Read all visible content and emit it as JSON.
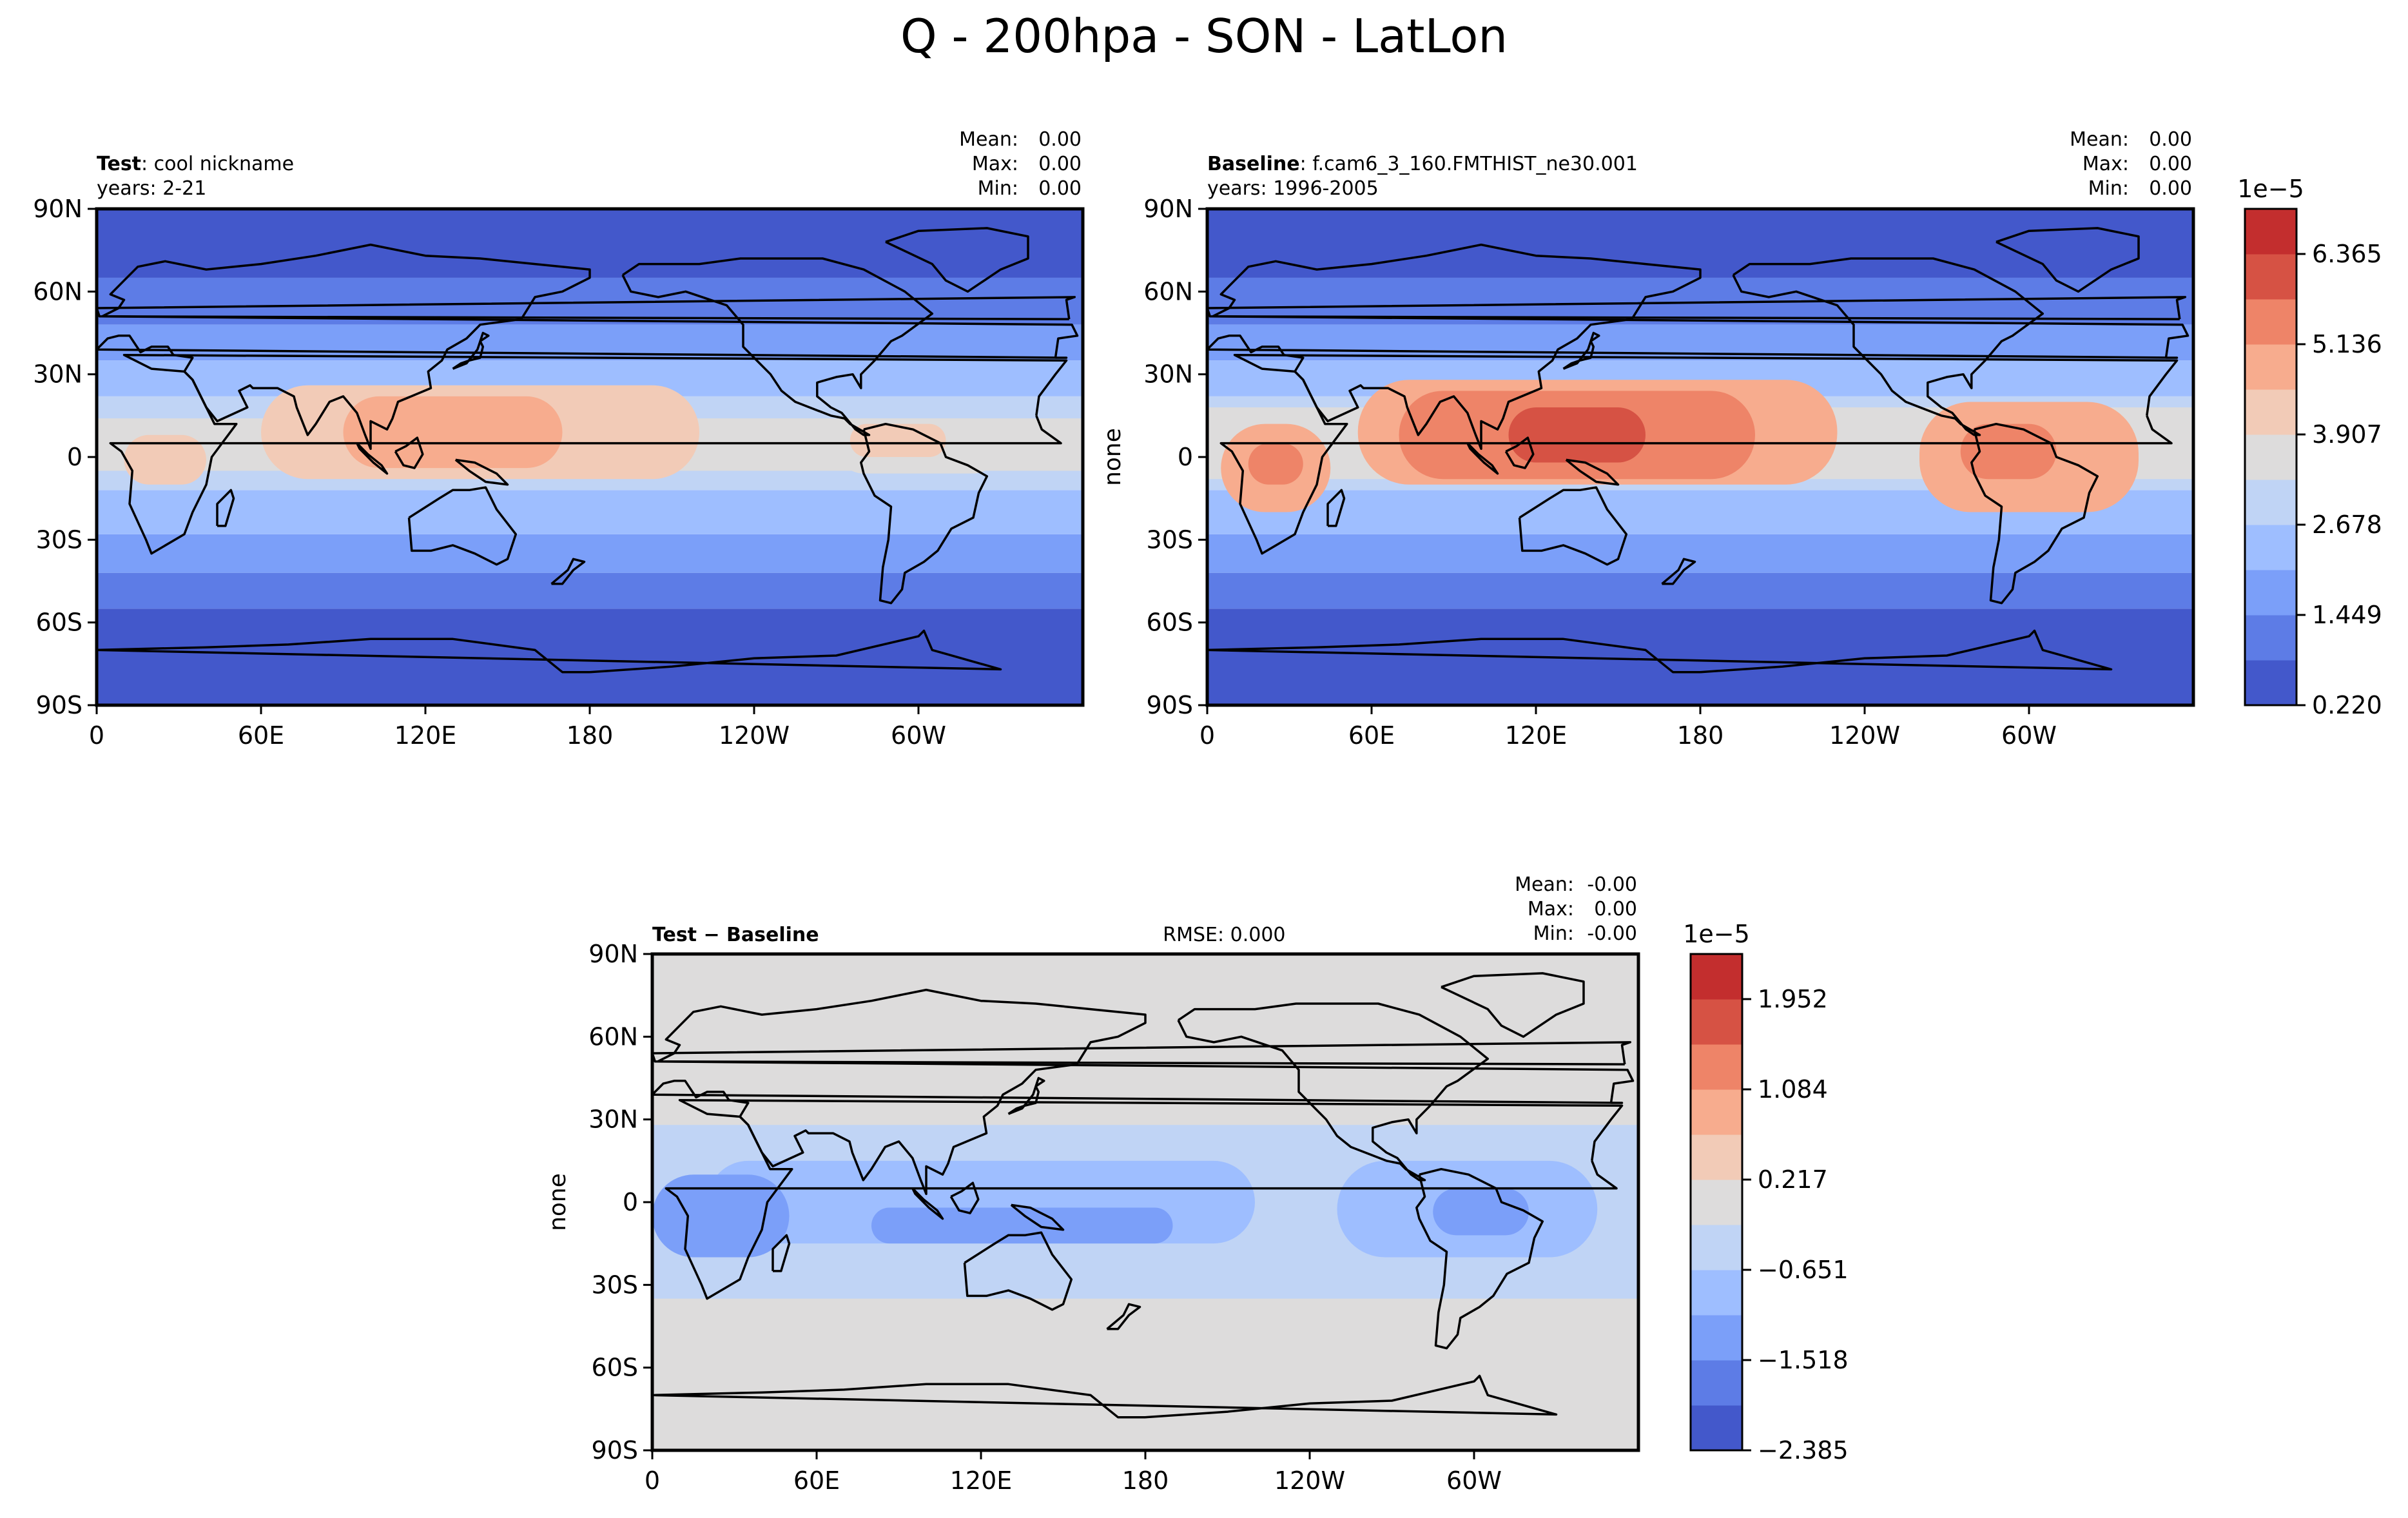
{
  "title": "Q - 200hpa - SON - LatLon",
  "lat_ticks": [
    "90N",
    "60N",
    "30N",
    "0",
    "30S",
    "60S",
    "90S"
  ],
  "lon_ticks": [
    "0",
    "60E",
    "120E",
    "180",
    "120W",
    "60W"
  ],
  "panels": [
    {
      "key": "test",
      "label_bold": "Test",
      "label_rest": ": cool nickname",
      "years": "years: 2-21",
      "ylabel": "",
      "rmse": "",
      "stats": [
        {
          "label": "Mean:",
          "value": "0.00"
        },
        {
          "label": "Max:",
          "value": "0.00"
        },
        {
          "label": "Min:",
          "value": "0.00"
        }
      ]
    },
    {
      "key": "baseline",
      "label_bold": "Baseline",
      "label_rest": ": f.cam6_3_160.FMTHIST_ne30.001",
      "years": "years: 1996-2005",
      "ylabel": "none",
      "rmse": "",
      "stats": [
        {
          "label": "Mean:",
          "value": "0.00"
        },
        {
          "label": "Max:",
          "value": "0.00"
        },
        {
          "label": "Min:",
          "value": "0.00"
        }
      ]
    },
    {
      "key": "diff",
      "label_bold": "Test − Baseline",
      "label_rest": "",
      "years": "",
      "ylabel": "none",
      "rmse": "RMSE: 0.000",
      "stats": [
        {
          "label": "Mean:",
          "value": "-0.00"
        },
        {
          "label": "Max:",
          "value": "0.00"
        },
        {
          "label": "Min:",
          "value": "-0.00"
        }
      ]
    }
  ],
  "colorbars": [
    {
      "key": "main",
      "exponent": "1e−5",
      "ticks": [
        "6.365",
        "5.136",
        "3.907",
        "2.678",
        "1.449",
        "0.220"
      ],
      "colors": [
        "#4358cb",
        "#5d7ce6",
        "#7b9ff9",
        "#9ebeff",
        "#c0d4f5",
        "#dddcdc",
        "#f2cbb7",
        "#f7ac8e",
        "#ee8468",
        "#d65244",
        "#c32e2e"
      ]
    },
    {
      "key": "diff",
      "exponent": "1e−5",
      "ticks": [
        "1.952",
        "1.084",
        "0.217",
        "−0.651",
        "−1.518",
        "−2.385"
      ],
      "colors": [
        "#4358cb",
        "#5d7ce6",
        "#7b9ff9",
        "#9ebeff",
        "#c0d4f5",
        "#dddcdc",
        "#f2cbb7",
        "#f7ac8e",
        "#ee8468",
        "#d65244",
        "#c32e2e"
      ]
    }
  ],
  "chart_data": [
    {
      "type": "heatmap",
      "name": "test",
      "projection": "PlateCarree, central_longitude 180",
      "field": "Q",
      "level": "200hpa",
      "season": "SON",
      "xlim": [
        0,
        360
      ],
      "ylim": [
        -90,
        90
      ],
      "lon_ticks_deg": [
        0,
        60,
        120,
        180,
        240,
        300
      ],
      "lat_ticks_deg": [
        90,
        60,
        30,
        0,
        -30,
        -60,
        -90
      ],
      "stats": {
        "mean": "0.00",
        "max": "0.00",
        "min": "0.00"
      },
      "levels_1e-5": [
        0.22,
        0.835,
        1.449,
        2.064,
        2.678,
        3.293,
        3.907,
        4.522,
        5.136,
        5.751,
        6.365,
        6.98
      ],
      "color_scale": "main",
      "features": [
        {
          "lon": [
            0,
            360
          ],
          "lat": [
            -90,
            -55
          ],
          "level": 0
        },
        {
          "lon": [
            0,
            360
          ],
          "lat": [
            65,
            90
          ],
          "level": 0
        },
        {
          "lon": [
            0,
            360
          ],
          "lat": [
            -55,
            -42
          ],
          "level": 1
        },
        {
          "lon": [
            0,
            360
          ],
          "lat": [
            48,
            65
          ],
          "level": 1
        },
        {
          "lon": [
            0,
            360
          ],
          "lat": [
            -42,
            -28
          ],
          "level": 2
        },
        {
          "lon": [
            0,
            360
          ],
          "lat": [
            35,
            48
          ],
          "level": 2
        },
        {
          "lon": [
            0,
            360
          ],
          "lat": [
            -28,
            -12
          ],
          "level": 3
        },
        {
          "lon": [
            0,
            360
          ],
          "lat": [
            22,
            35
          ],
          "level": 3
        },
        {
          "lon": [
            0,
            360
          ],
          "lat": [
            -12,
            22
          ],
          "level": 4
        },
        {
          "lon": [
            0,
            360
          ],
          "lat": [
            -5,
            14
          ],
          "level": 5
        },
        {
          "lon": [
            60,
            220
          ],
          "lat": [
            -8,
            26
          ],
          "level": 6
        },
        {
          "lon": [
            90,
            170
          ],
          "lat": [
            -4,
            22
          ],
          "level": 7
        },
        {
          "lon": [
            270,
            330
          ],
          "lat": [
            -6,
            14
          ],
          "level": 5
        },
        {
          "lon": [
            275,
            310
          ],
          "lat": [
            0,
            12
          ],
          "level": 6
        },
        {
          "lon": [
            10,
            40
          ],
          "lat": [
            -10,
            8
          ],
          "level": 6
        }
      ]
    },
    {
      "type": "heatmap",
      "name": "baseline",
      "projection": "PlateCarree, central_longitude 180",
      "field": "Q",
      "level": "200hpa",
      "season": "SON",
      "xlim": [
        0,
        360
      ],
      "ylim": [
        -90,
        90
      ],
      "lon_ticks_deg": [
        0,
        60,
        120,
        180,
        240,
        300
      ],
      "lat_ticks_deg": [
        90,
        60,
        30,
        0,
        -30,
        -60,
        -90
      ],
      "stats": {
        "mean": "0.00",
        "max": "0.00",
        "min": "0.00"
      },
      "levels_1e-5": [
        0.22,
        0.835,
        1.449,
        2.064,
        2.678,
        3.293,
        3.907,
        4.522,
        5.136,
        5.751,
        6.365,
        6.98
      ],
      "color_scale": "main",
      "features": [
        {
          "lon": [
            0,
            360
          ],
          "lat": [
            -90,
            -55
          ],
          "level": 0
        },
        {
          "lon": [
            0,
            360
          ],
          "lat": [
            65,
            90
          ],
          "level": 0
        },
        {
          "lon": [
            0,
            360
          ],
          "lat": [
            -55,
            -42
          ],
          "level": 1
        },
        {
          "lon": [
            0,
            360
          ],
          "lat": [
            48,
            65
          ],
          "level": 1
        },
        {
          "lon": [
            0,
            360
          ],
          "lat": [
            -42,
            -28
          ],
          "level": 2
        },
        {
          "lon": [
            0,
            360
          ],
          "lat": [
            35,
            48
          ],
          "level": 2
        },
        {
          "lon": [
            0,
            360
          ],
          "lat": [
            -28,
            -12
          ],
          "level": 3
        },
        {
          "lon": [
            0,
            360
          ],
          "lat": [
            22,
            35
          ],
          "level": 3
        },
        {
          "lon": [
            0,
            360
          ],
          "lat": [
            -12,
            22
          ],
          "level": 4
        },
        {
          "lon": [
            0,
            360
          ],
          "lat": [
            -8,
            18
          ],
          "level": 5
        },
        {
          "lon": [
            55,
            230
          ],
          "lat": [
            -10,
            28
          ],
          "level": 7
        },
        {
          "lon": [
            70,
            200
          ],
          "lat": [
            -8,
            24
          ],
          "level": 8
        },
        {
          "lon": [
            110,
            160
          ],
          "lat": [
            -2,
            18
          ],
          "level": 9
        },
        {
          "lon": [
            260,
            340
          ],
          "lat": [
            -20,
            20
          ],
          "level": 7
        },
        {
          "lon": [
            275,
            310
          ],
          "lat": [
            -8,
            12
          ],
          "level": 8
        },
        {
          "lon": [
            5,
            45
          ],
          "lat": [
            -20,
            12
          ],
          "level": 7
        },
        {
          "lon": [
            15,
            35
          ],
          "lat": [
            -10,
            5
          ],
          "level": 8
        }
      ]
    },
    {
      "type": "heatmap",
      "name": "test-minus-baseline",
      "projection": "PlateCarree, central_longitude 180",
      "field": "Q",
      "level": "200hpa",
      "season": "SON",
      "xlim": [
        0,
        360
      ],
      "ylim": [
        -90,
        90
      ],
      "lon_ticks_deg": [
        0,
        60,
        120,
        180,
        240,
        300
      ],
      "lat_ticks_deg": [
        90,
        60,
        30,
        0,
        -30,
        -60,
        -90
      ],
      "stats": {
        "mean": "-0.00",
        "max": "0.00",
        "min": "-0.00",
        "rmse": "0.000"
      },
      "levels_1e-5": [
        -2.385,
        -1.951,
        -1.518,
        -1.085,
        -0.651,
        -0.217,
        0.217,
        0.651,
        1.084,
        1.518,
        1.952,
        2.385
      ],
      "color_scale": "diff",
      "features": [
        {
          "lon": [
            0,
            360
          ],
          "lat": [
            -90,
            90
          ],
          "level": 5
        },
        {
          "lon": [
            0,
            360
          ],
          "lat": [
            -35,
            28
          ],
          "level": 4
        },
        {
          "lon": [
            20,
            220
          ],
          "lat": [
            -15,
            15
          ],
          "level": 3
        },
        {
          "lon": [
            250,
            345
          ],
          "lat": [
            -20,
            15
          ],
          "level": 3
        },
        {
          "lon": [
            0,
            50
          ],
          "lat": [
            -20,
            10
          ],
          "level": 2
        },
        {
          "lon": [
            80,
            190
          ],
          "lat": [
            -15,
            -2
          ],
          "level": 2
        },
        {
          "lon": [
            285,
            320
          ],
          "lat": [
            -12,
            5
          ],
          "level": 2
        }
      ]
    }
  ]
}
